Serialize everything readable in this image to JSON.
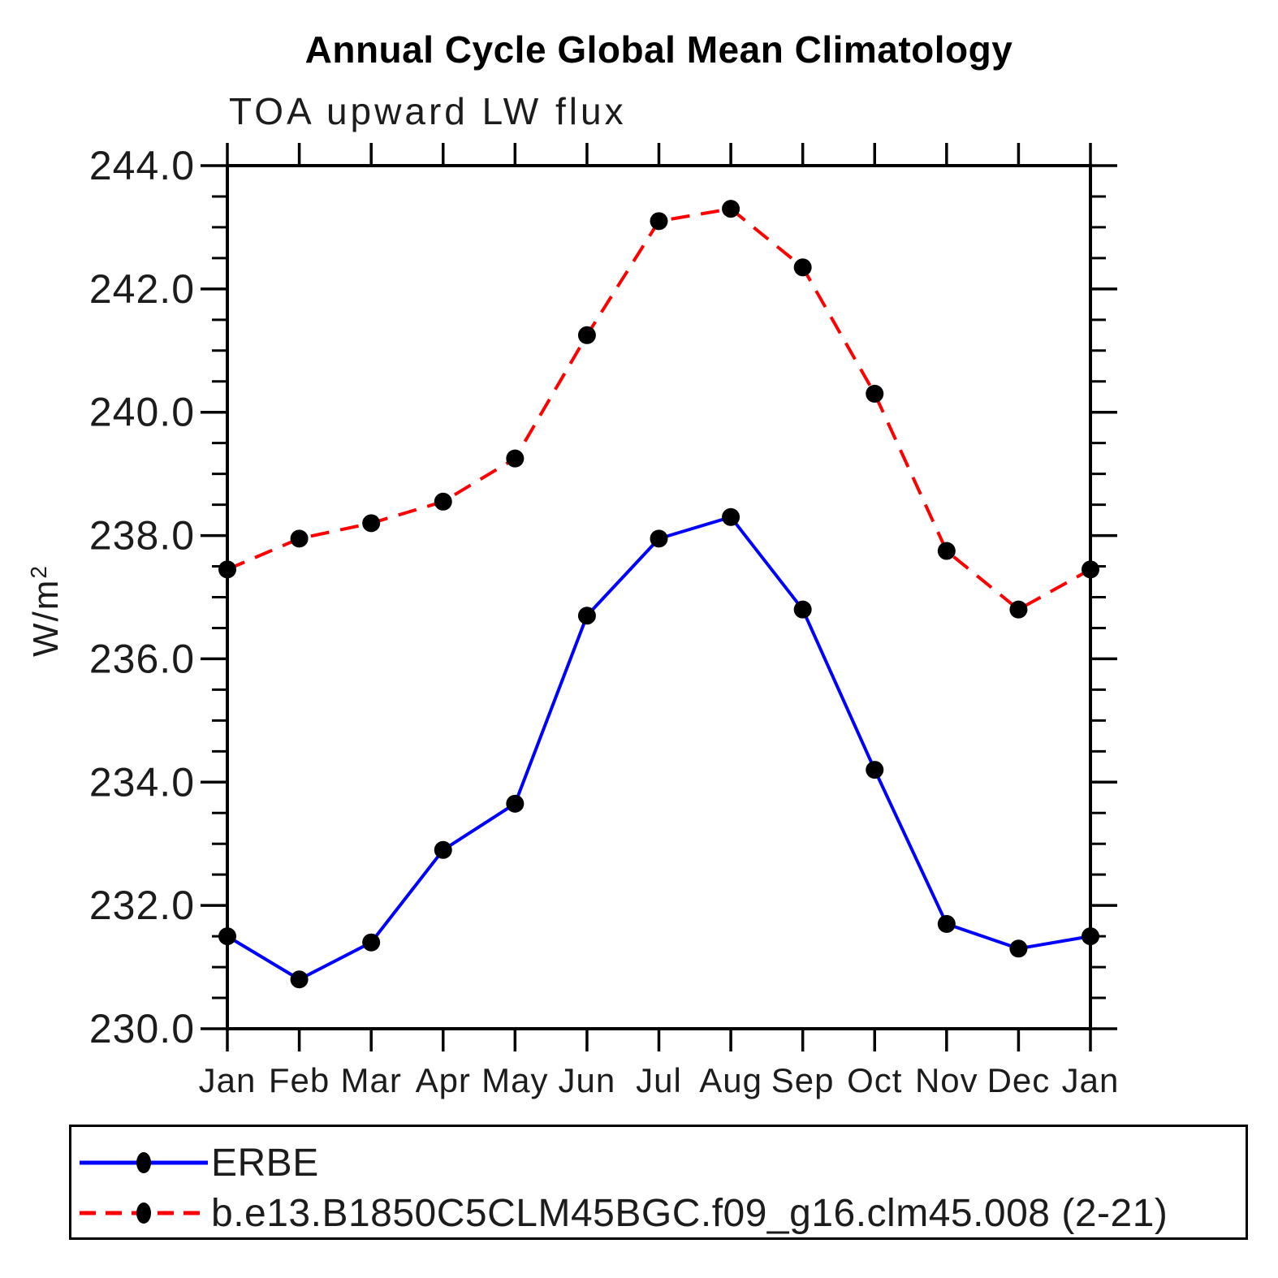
{
  "chart_data": {
    "type": "line",
    "title": "Annual Cycle Global Mean Climatology",
    "subtitle": "TOA upward LW flux",
    "ylabel_base": "W/m",
    "ylabel_exp": "2",
    "categories": [
      "Jan",
      "Feb",
      "Mar",
      "Apr",
      "May",
      "Jun",
      "Jul",
      "Aug",
      "Sep",
      "Oct",
      "Nov",
      "Dec",
      "Jan"
    ],
    "ylim": [
      230.0,
      244.0
    ],
    "ytick_major_interval": 2.0,
    "ytick_minor_interval": 0.5,
    "ytick_labels": [
      "230.0",
      "232.0",
      "234.0",
      "236.0",
      "238.0",
      "240.0",
      "242.0",
      "244.0"
    ],
    "grid": false,
    "legend_position": "bottom",
    "series": [
      {
        "name": "ERBE",
        "color": "#0000FF",
        "line_style": "solid",
        "marker": "filled-circle",
        "marker_color": "#000000",
        "values": [
          231.5,
          230.8,
          231.4,
          232.9,
          233.65,
          236.7,
          237.95,
          238.3,
          236.8,
          234.2,
          231.7,
          231.3,
          231.5
        ]
      },
      {
        "name": "b.e13.B1850C5CLM45BGC.f09_g16.clm45.008 (2-21)",
        "color": "#FF0000",
        "line_style": "dashed",
        "marker": "filled-circle",
        "marker_color": "#000000",
        "values": [
          237.45,
          237.95,
          238.2,
          238.55,
          239.25,
          241.25,
          243.1,
          243.3,
          242.35,
          240.3,
          237.75,
          236.8,
          237.45
        ]
      }
    ]
  }
}
